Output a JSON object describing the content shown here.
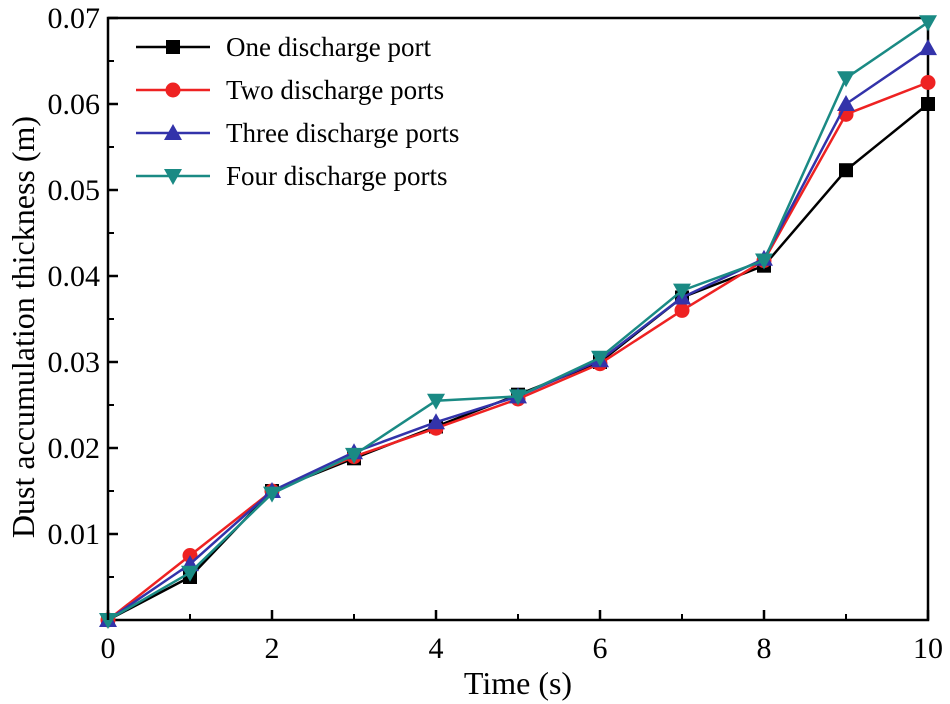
{
  "chart_data": {
    "type": "line",
    "title": "",
    "xlabel": "Time (s)",
    "ylabel": "Dust accumulation thickness (m)",
    "xlim": [
      0,
      10
    ],
    "ylim": [
      0,
      0.07
    ],
    "x_ticks": [
      0,
      2,
      4,
      6,
      8,
      10
    ],
    "x_tick_labels": [
      "0",
      "2",
      "4",
      "6",
      "8",
      "10"
    ],
    "y_ticks": [
      0.01,
      0.02,
      0.03,
      0.04,
      0.05,
      0.06,
      0.07
    ],
    "y_tick_labels": [
      "0.01",
      "0.02",
      "0.03",
      "0.04",
      "0.05",
      "0.06",
      "0.07"
    ],
    "grid": false,
    "legend_position": "top-left",
    "x": [
      0,
      1,
      2,
      3,
      4,
      5,
      6,
      7,
      8,
      9,
      10
    ],
    "series": [
      {
        "name": "One discharge port",
        "color": "#000000",
        "marker": "square",
        "values": [
          0,
          0.005,
          0.015,
          0.0188,
          0.0225,
          0.0262,
          0.03,
          0.0375,
          0.0412,
          0.0523,
          0.06
        ]
      },
      {
        "name": "Two discharge ports",
        "color": "#ee2222",
        "marker": "circle",
        "values": [
          0,
          0.0075,
          0.015,
          0.019,
          0.0223,
          0.0257,
          0.0298,
          0.036,
          0.0418,
          0.0588,
          0.0625
        ]
      },
      {
        "name": "Three discharge ports",
        "color": "#3333aa",
        "marker": "triangle-up",
        "values": [
          0,
          0.0065,
          0.015,
          0.0195,
          0.023,
          0.026,
          0.0302,
          0.0375,
          0.042,
          0.06,
          0.0665
        ]
      },
      {
        "name": "Four discharge ports",
        "color": "#1a8a84",
        "marker": "triangle-down",
        "values": [
          0,
          0.0055,
          0.0147,
          0.0192,
          0.0255,
          0.026,
          0.0305,
          0.0383,
          0.0418,
          0.063,
          0.0695
        ]
      }
    ]
  }
}
